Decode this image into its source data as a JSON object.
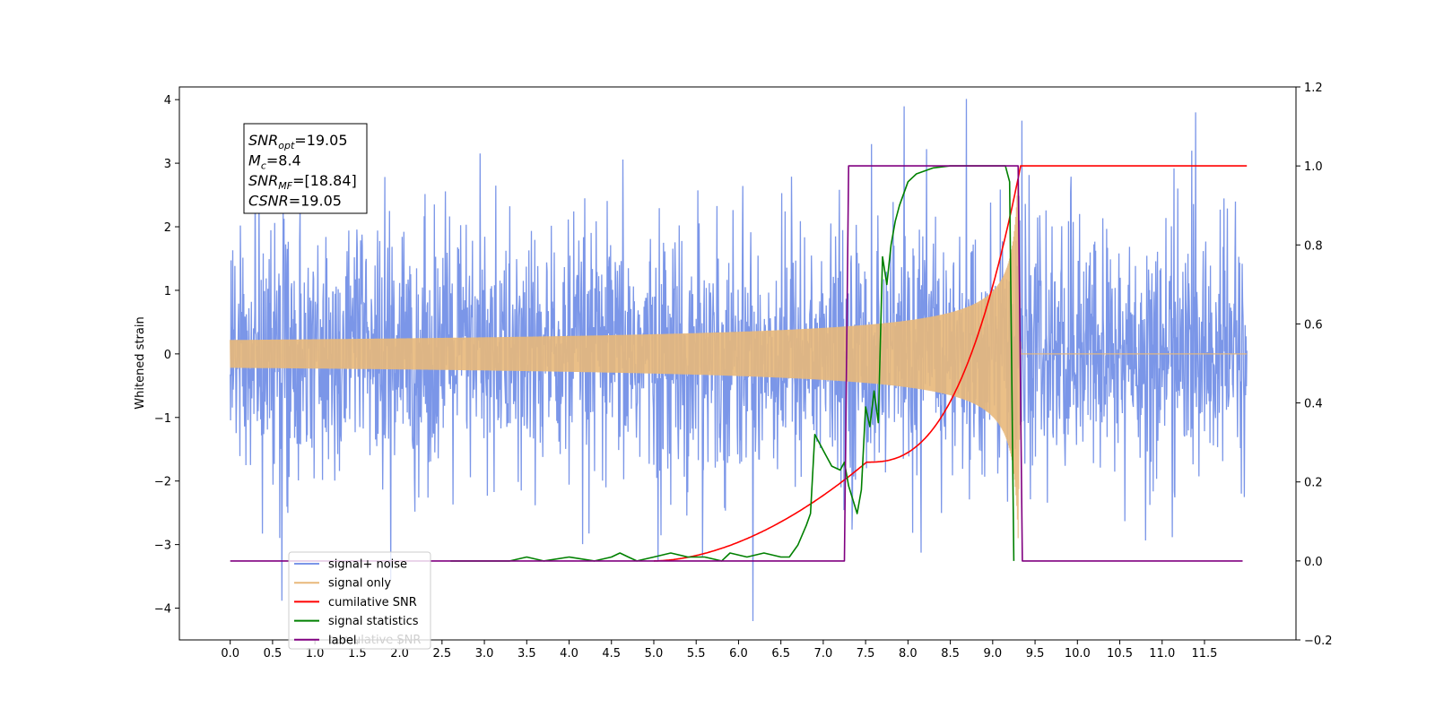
{
  "chart_data": {
    "type": "line",
    "title": "",
    "xlabel": "",
    "ylabel": "Whitened strain",
    "xlim": [
      -0.6,
      12.58
    ],
    "ylim": [
      -4.5,
      4.2
    ],
    "y2lim": [
      -0.2,
      1.2
    ],
    "grid": false,
    "legend_position": "lower-left",
    "x_ticks": [
      "0.0",
      "0.5",
      "1.0",
      "1.5",
      "2.0",
      "2.5",
      "3.0",
      "3.5",
      "4.0",
      "4.5",
      "5.0",
      "5.5",
      "6.0",
      "6.5",
      "7.0",
      "7.5",
      "8.0",
      "8.5",
      "9.0",
      "9.5",
      "10.0",
      "10.5",
      "11.0",
      "11.5"
    ],
    "y_ticks": [
      "4",
      "3",
      "2",
      "1",
      "0",
      "−1",
      "−2",
      "−3",
      "−4"
    ],
    "y2_ticks": [
      "1.2",
      "1.0",
      "0.8",
      "0.6",
      "0.4",
      "0.2",
      "0.0",
      "−0.2"
    ],
    "annotation": {
      "lines": [
        {
          "sym": "SNR",
          "sub": "opt",
          "rest": "=19.05"
        },
        {
          "sym": "M",
          "sub": "c",
          "rest": "=8.4"
        },
        {
          "sym": "SNR",
          "sub": "MF",
          "rest": "=[18.84]"
        },
        {
          "sym": "CSNR",
          "sub": "",
          "rest": "=19.05"
        }
      ]
    },
    "series": [
      {
        "name": "signal+ noise",
        "axis": "left",
        "color": "#7b96e8",
        "description": "whitened noise with amplitude ~1.3, peaks up to ~3.8",
        "x_range": [
          0,
          12.0
        ]
      },
      {
        "name": "signal only",
        "axis": "left",
        "color": "#e8b87a",
        "merger_time": 9.3,
        "peak_amplitude": 2.9,
        "x_range": [
          0,
          12.0
        ]
      },
      {
        "name": "cumilative SNR",
        "axis": "right",
        "color": "#ff0000",
        "x": [
          5.0,
          5.5,
          6.0,
          6.5,
          7.0,
          7.5,
          7.8,
          8.0,
          8.3,
          8.5,
          8.7,
          8.9,
          9.0,
          9.1,
          9.2,
          9.25,
          9.3,
          9.32,
          9.35,
          10.0,
          11.0,
          12.0
        ],
        "values": [
          0.0,
          0.03,
          0.08,
          0.14,
          0.19,
          0.25,
          0.29,
          0.33,
          0.39,
          0.44,
          0.51,
          0.59,
          0.64,
          0.71,
          0.79,
          0.84,
          0.93,
          0.98,
          1.0,
          1.0,
          1.0,
          1.0
        ]
      },
      {
        "name": "signal statistics",
        "axis": "right",
        "color": "#008000",
        "x": [
          2.6,
          3.0,
          3.3,
          3.5,
          3.7,
          4.0,
          4.3,
          4.5,
          4.6,
          4.7,
          4.8,
          5.0,
          5.2,
          5.4,
          5.6,
          5.8,
          5.9,
          6.1,
          6.3,
          6.5,
          6.6,
          6.7,
          6.8,
          6.85,
          6.9,
          6.95,
          7.0,
          7.05,
          7.1,
          7.2,
          7.25,
          7.3,
          7.4,
          7.45,
          7.5,
          7.55,
          7.6,
          7.65,
          7.7,
          7.75,
          7.8,
          7.85,
          7.9,
          8.0,
          8.1,
          8.3,
          8.5,
          8.8,
          9.0,
          9.15,
          9.2,
          9.25
        ],
        "values": [
          0.0,
          0.0,
          0.0,
          0.01,
          0.0,
          0.01,
          0.0,
          0.01,
          0.02,
          0.01,
          0.0,
          0.01,
          0.02,
          0.01,
          0.01,
          0.0,
          0.02,
          0.01,
          0.02,
          0.01,
          0.01,
          0.04,
          0.09,
          0.12,
          0.32,
          0.3,
          0.28,
          0.26,
          0.24,
          0.23,
          0.25,
          0.19,
          0.12,
          0.18,
          0.39,
          0.34,
          0.43,
          0.35,
          0.77,
          0.7,
          0.8,
          0.86,
          0.9,
          0.96,
          0.98,
          0.995,
          1.0,
          1.0,
          1.0,
          1.0,
          0.96,
          0.0
        ]
      },
      {
        "name": "label",
        "axis": "right",
        "color": "#800080",
        "x": [
          0.0,
          7.25,
          7.3,
          9.3,
          9.35,
          11.95
        ],
        "values": [
          0.0,
          0.0,
          1.0,
          1.0,
          0.0,
          0.0
        ]
      }
    ],
    "legend_overlap_text": "cumulative SNR"
  }
}
